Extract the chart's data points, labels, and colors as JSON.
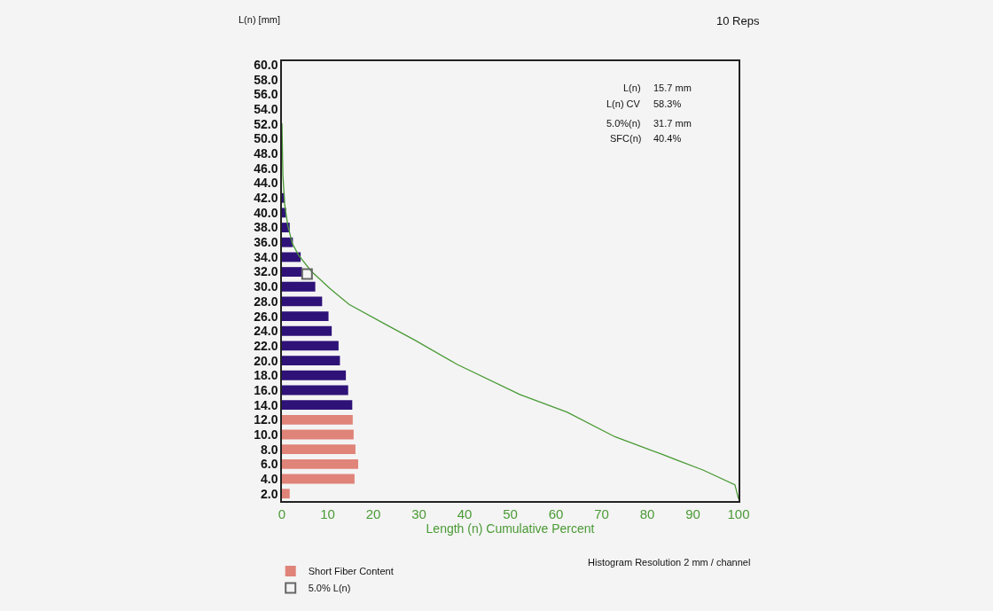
{
  "chart_data": {
    "type": "bar",
    "orientation": "horizontal",
    "xlabel": "Length (n) Cumulative Percent",
    "ylabel": "L(n) [mm]",
    "annotations": [
      "10 Reps",
      "L(n)",
      "15.7 mm",
      "L(n) CV",
      "58.3%",
      "5.0%(n)",
      "31.7 mm",
      "SFC(n)",
      "40.4%",
      "Histogram Resolution 2 mm / channel"
    ],
    "xlim": [
      0,
      100
    ],
    "xticks": [
      0,
      10,
      20,
      30,
      40,
      50,
      60,
      70,
      80,
      90,
      100
    ],
    "ylim": [
      1,
      60.5
    ],
    "yticks": [
      {
        "value": 2,
        "label": "2.0"
      },
      {
        "value": 4,
        "label": "4.0"
      },
      {
        "value": 6,
        "label": "6.0"
      },
      {
        "value": 8,
        "label": "8.0"
      },
      {
        "value": 10,
        "label": "10.0"
      },
      {
        "value": 12,
        "label": "12.0"
      },
      {
        "value": 14,
        "label": "14.0"
      },
      {
        "value": 16,
        "label": "16.0"
      },
      {
        "value": 18,
        "label": "18.0"
      },
      {
        "value": 20,
        "label": "20.0"
      },
      {
        "value": 22,
        "label": "22.0"
      },
      {
        "value": 24,
        "label": "24.0"
      },
      {
        "value": 26,
        "label": "26.0"
      },
      {
        "value": 28,
        "label": "28.0"
      },
      {
        "value": 30,
        "label": "30.0"
      },
      {
        "value": 32,
        "label": "32.0"
      },
      {
        "value": 34,
        "label": "34.0"
      },
      {
        "value": 36,
        "label": "36.0"
      },
      {
        "value": 38,
        "label": "38.0"
      },
      {
        "value": 40,
        "label": "40.0"
      },
      {
        "value": 42,
        "label": "42.0"
      },
      {
        "value": 44,
        "label": "44.0"
      },
      {
        "value": 46,
        "label": "46.0"
      },
      {
        "value": 48,
        "label": "48.0"
      },
      {
        "value": 50,
        "label": "50.0"
      },
      {
        "value": 52,
        "label": "52.0"
      },
      {
        "value": 54,
        "label": "54.0"
      },
      {
        "value": 56,
        "label": "56.0"
      },
      {
        "value": 58,
        "label": "58.0"
      },
      {
        "value": 60,
        "label": "60.0"
      }
    ],
    "grid": false,
    "legend": "bottom left",
    "series": [
      {
        "name": "Short Fiber Content",
        "color": "#e08378",
        "x": [
          2,
          4,
          6,
          8,
          10,
          12
        ],
        "values": [
          1.7,
          15.9,
          16.7,
          16.1,
          15.7,
          15.5
        ]
      },
      {
        "color": "#2e1278",
        "x": [
          14,
          16,
          18,
          20,
          22,
          24,
          26,
          28,
          30,
          32,
          34,
          36,
          38,
          40,
          42
        ],
        "values": [
          15.4,
          14.5,
          14.0,
          12.7,
          12.4,
          10.9,
          10.2,
          8.8,
          7.3,
          4.4,
          4.1,
          2.4,
          1.7,
          0.9,
          0.6
        ]
      },
      {
        "type": "line",
        "color": "#4a9a35",
        "marker": "none",
        "x": [
          52.1,
          45.2,
          41.1,
          38.2,
          35.8,
          34.2,
          32.1,
          29.7,
          27.6,
          24.8,
          22.7,
          19.5,
          15.4,
          13.0,
          9.7,
          7.3,
          5.2,
          3.2,
          1.3
        ],
        "values": [
          0,
          0.2,
          0.6,
          1.3,
          2.3,
          3.7,
          6.4,
          10.6,
          14.7,
          23.0,
          29.3,
          38.3,
          52.1,
          62.5,
          72.9,
          83.3,
          92.2,
          99.2,
          100
        ]
      },
      {
        "type": "scatter",
        "name": "5.0% L(n)",
        "color": "#666666",
        "marker": "square",
        "x": [
          31.7
        ],
        "values": [
          5.5
        ]
      }
    ]
  }
}
